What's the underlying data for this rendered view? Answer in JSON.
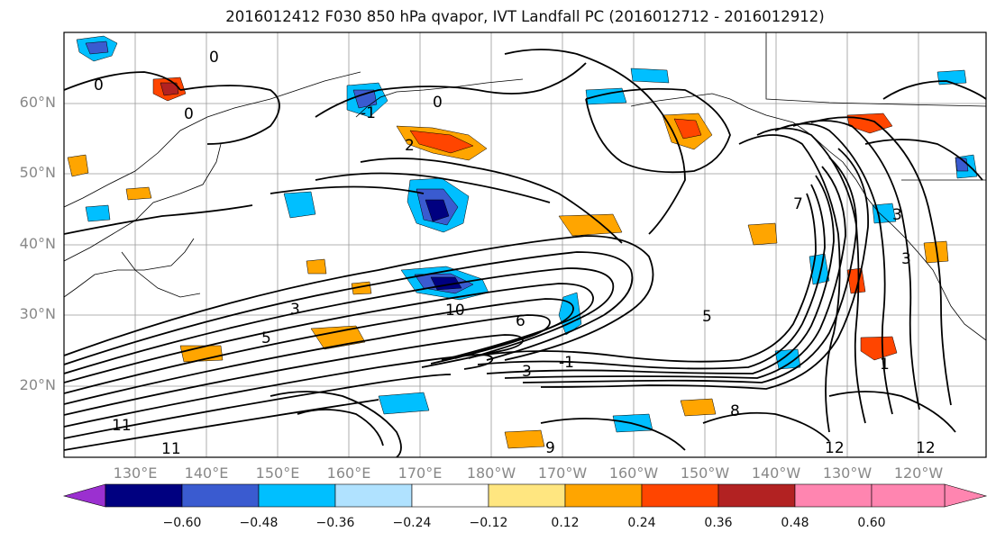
{
  "title": "2016012412 F030 850 hPa qvapor, IVT Landfall PC (2016012712 - 2016012912)",
  "lat_labels": [
    "60°N",
    "50°N",
    "40°N",
    "30°N",
    "20°N"
  ],
  "lon_labels": [
    "130°E",
    "140°E",
    "150°E",
    "160°E",
    "170°E",
    "180°W",
    "170°W",
    "160°W",
    "150°W",
    "140°W",
    "130°W",
    "120°W"
  ],
  "colorbar": {
    "colors": [
      "#9b30d0",
      "#000080",
      "#3a5bd0",
      "#00bfff",
      "#b0e2ff",
      "#ffffff",
      "#ffe680",
      "#ffa500",
      "#ff4500",
      "#b22222",
      "#ff85b0"
    ],
    "tick_labels": [
      "−0.60",
      "−0.48",
      "−0.36",
      "−0.24",
      "−0.12",
      "0.12",
      "0.24",
      "0.36",
      "0.48",
      "0.60"
    ]
  },
  "contour_labels": [
    "0",
    "0",
    "0",
    "0",
    "2",
    "-1",
    "3",
    "5",
    "10",
    "5",
    "6",
    "3",
    "11",
    "11",
    "3",
    "-1",
    "7",
    "3",
    "1",
    "12",
    "12",
    "9",
    "8"
  ]
}
